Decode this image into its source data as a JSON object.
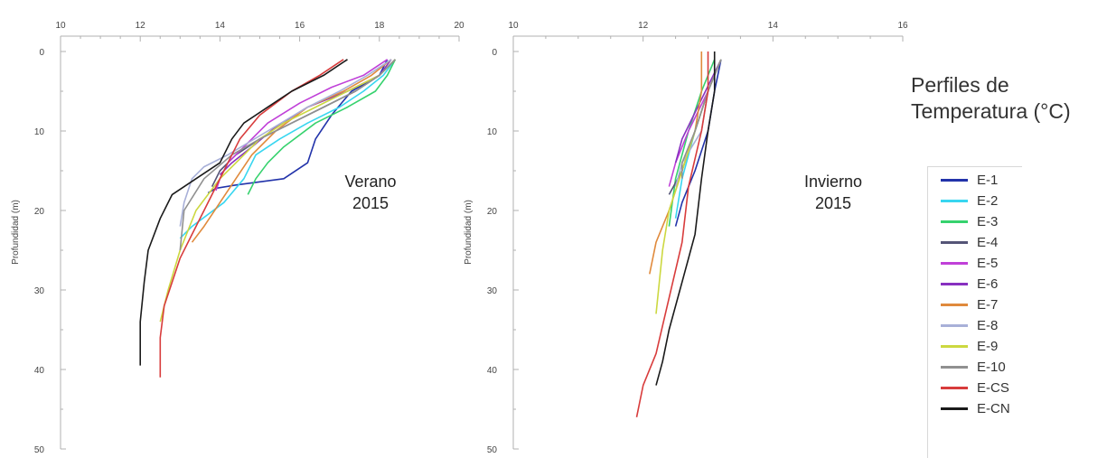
{
  "chart_data": [
    {
      "type": "line",
      "title": "Verano\n2015",
      "xlabel": "",
      "ylabel": "Profundidad (m)",
      "xlim": [
        10,
        20
      ],
      "ylim": [
        0,
        50
      ],
      "y_inverted": true,
      "x_ticks": [
        10,
        12,
        14,
        16,
        18,
        20
      ],
      "y_ticks": [
        0,
        10,
        20,
        30,
        40,
        50
      ],
      "x_axis_position": "top",
      "grid": false,
      "legend": "right",
      "series": [
        {
          "name": "E-1",
          "color": "#2233aa",
          "x": [
            18.2,
            18.0,
            17.3,
            16.8,
            16.4,
            16.2,
            15.6,
            14.4,
            13.9,
            13.7
          ],
          "y": [
            1,
            3,
            5,
            8,
            11,
            14,
            16,
            16.8,
            17.2,
            17.8
          ]
        },
        {
          "name": "E-2",
          "color": "#38d6f0",
          "x": [
            18.4,
            18.1,
            17.6,
            17.0,
            16.2,
            15.5,
            14.9,
            14.6,
            14.1,
            13.3,
            13.0
          ],
          "y": [
            1,
            3,
            5,
            7,
            9,
            11,
            13,
            16,
            19,
            22,
            23.5
          ]
        },
        {
          "name": "E-3",
          "color": "#36d26e",
          "x": [
            18.4,
            18.2,
            17.9,
            17.2,
            16.4,
            15.6,
            15.2,
            14.9,
            14.7
          ],
          "y": [
            1,
            3,
            5,
            7,
            9,
            12,
            14,
            16,
            18
          ]
        },
        {
          "name": "E-4",
          "color": "#555577",
          "x": [
            18.4,
            18.0,
            17.4,
            16.6,
            15.8,
            15.0,
            14.4,
            14.0,
            13.8
          ],
          "y": [
            1,
            3,
            5,
            7,
            9,
            11,
            13,
            15,
            17
          ]
        },
        {
          "name": "E-5",
          "color": "#c040d8",
          "x": [
            18.2,
            17.6,
            16.8,
            16.0,
            15.2,
            14.6,
            14.2,
            14.0,
            13.9
          ],
          "y": [
            1,
            3,
            4.5,
            6.5,
            9,
            12,
            14,
            16,
            17.5
          ]
        },
        {
          "name": "E-6",
          "color": "#8830c0",
          "x": [
            18.3,
            18.0,
            17.2,
            16.2,
            15.4,
            14.8,
            14.3,
            14.0
          ],
          "y": [
            1,
            3,
            5,
            7,
            9.5,
            12,
            14,
            15.5
          ]
        },
        {
          "name": "E-7",
          "color": "#e08a3c",
          "x": [
            18.3,
            17.8,
            17.1,
            16.2,
            15.4,
            14.8,
            14.4,
            14.0,
            13.6,
            13.3
          ],
          "y": [
            1,
            3,
            5,
            7,
            10,
            13,
            16,
            19,
            22,
            24
          ]
        },
        {
          "name": "E-8",
          "color": "#a8b0d8",
          "x": [
            18.3,
            17.7,
            17.0,
            16.2,
            15.2,
            14.2,
            13.6,
            13.3,
            13.1,
            13.0
          ],
          "y": [
            1,
            3,
            5,
            7,
            10,
            13,
            14.5,
            16,
            19,
            22
          ]
        },
        {
          "name": "E-9",
          "color": "#ccd840",
          "x": [
            18.4,
            18.0,
            17.2,
            16.4,
            15.6,
            15.0,
            14.6,
            14.0,
            13.4,
            13.0,
            12.7,
            12.5
          ],
          "y": [
            1,
            3,
            5,
            7,
            9,
            11,
            13,
            16,
            20,
            25,
            30,
            34
          ]
        },
        {
          "name": "E-10",
          "color": "#909090",
          "x": [
            18.4,
            18.0,
            17.4,
            16.6,
            15.8,
            15.0,
            14.3,
            13.6,
            13.1,
            13.0
          ],
          "y": [
            1,
            3,
            5,
            7,
            9,
            11,
            13,
            16,
            20,
            25
          ]
        },
        {
          "name": "E-CS",
          "color": "#d83c3c",
          "x": [
            17.1,
            16.5,
            15.8,
            15.0,
            14.5,
            14.2,
            13.9,
            13.6,
            13.3,
            13.0,
            12.8,
            12.6,
            12.5,
            12.5
          ],
          "y": [
            1,
            3,
            5,
            8,
            11,
            14,
            17,
            20,
            23,
            26,
            29,
            32,
            36,
            41
          ]
        },
        {
          "name": "E-CN",
          "color": "#1a1a1a",
          "x": [
            17.2,
            16.6,
            15.8,
            15.2,
            14.6,
            14.3,
            14.0,
            13.4,
            12.8,
            12.5,
            12.2,
            12.1,
            12.0,
            12.0
          ],
          "y": [
            1,
            3,
            5,
            7,
            9,
            11,
            14,
            16,
            18,
            21,
            25,
            29,
            34,
            39.5
          ]
        }
      ]
    },
    {
      "type": "line",
      "title": "Invierno\n2015",
      "xlabel": "",
      "ylabel": "Profundidad (m)",
      "xlim": [
        10,
        16
      ],
      "ylim": [
        0,
        50
      ],
      "y_inverted": true,
      "x_ticks": [
        10,
        12,
        14,
        16
      ],
      "y_ticks": [
        0,
        10,
        20,
        30,
        40,
        50
      ],
      "x_axis_position": "top",
      "grid": false,
      "legend": "right",
      "series": [
        {
          "name": "E-1",
          "color": "#2233aa",
          "x": [
            13.2,
            13.1,
            13.0,
            12.8,
            12.6,
            12.5
          ],
          "y": [
            1,
            5,
            10,
            15,
            19,
            22
          ]
        },
        {
          "name": "E-2",
          "color": "#38d6f0",
          "x": [
            13.2,
            13.0,
            12.8,
            12.6,
            12.5
          ],
          "y": [
            1,
            5,
            10,
            16,
            21
          ]
        },
        {
          "name": "E-3",
          "color": "#36d26e",
          "x": [
            13.1,
            12.9,
            12.7,
            12.5,
            12.4
          ],
          "y": [
            1,
            5,
            10,
            16,
            22
          ]
        },
        {
          "name": "E-4",
          "color": "#555577",
          "x": [
            13.2,
            13.0,
            12.8,
            12.6,
            12.4
          ],
          "y": [
            1,
            5,
            10,
            15,
            18
          ]
        },
        {
          "name": "E-5",
          "color": "#c040d8",
          "x": [
            13.2,
            13.0,
            12.7,
            12.5,
            12.4
          ],
          "y": [
            1,
            5,
            10,
            14,
            17
          ]
        },
        {
          "name": "E-6",
          "color": "#8830c0",
          "x": [
            13.2,
            12.9,
            12.6,
            12.5
          ],
          "y": [
            1,
            6,
            11,
            14
          ]
        },
        {
          "name": "E-7",
          "color": "#e08a3c",
          "x": [
            12.9,
            12.9,
            12.8,
            12.6,
            12.4,
            12.2,
            12.1
          ],
          "y": [
            0,
            5,
            10,
            15,
            20,
            24,
            28
          ]
        },
        {
          "name": "E-8",
          "color": "#a8b0d8",
          "x": [
            13.2,
            13.0,
            12.9,
            12.6,
            12.5
          ],
          "y": [
            1,
            5,
            10,
            14,
            17
          ]
        },
        {
          "name": "E-9",
          "color": "#ccd840",
          "x": [
            13.2,
            13.0,
            12.8,
            12.6,
            12.4,
            12.3,
            12.2
          ],
          "y": [
            1,
            5,
            10,
            15,
            20,
            25,
            33
          ]
        },
        {
          "name": "E-10",
          "color": "#909090",
          "x": [
            13.2,
            13.0,
            12.8,
            12.6,
            12.6
          ],
          "y": [
            1,
            5,
            10,
            14,
            16
          ]
        },
        {
          "name": "E-CS",
          "color": "#d83c3c",
          "x": [
            13.0,
            13.0,
            12.9,
            12.7,
            12.6,
            12.4,
            12.2,
            12.0,
            11.9
          ],
          "y": [
            0,
            5,
            10,
            17,
            24,
            31,
            38,
            42,
            46
          ]
        },
        {
          "name": "E-CN",
          "color": "#1a1a1a",
          "x": [
            13.1,
            13.1,
            13.0,
            12.9,
            12.8,
            12.6,
            12.4,
            12.3,
            12.2
          ],
          "y": [
            0,
            5,
            10,
            16,
            23,
            29,
            35,
            39,
            42
          ]
        }
      ]
    }
  ],
  "legend": {
    "title_line1": "Perfiles de",
    "title_line2": "Temperatura (°C)",
    "items": [
      {
        "label": "E-1",
        "color": "#2233aa"
      },
      {
        "label": "E-2",
        "color": "#38d6f0"
      },
      {
        "label": "E-3",
        "color": "#36d26e"
      },
      {
        "label": "E-4",
        "color": "#555577"
      },
      {
        "label": "E-5",
        "color": "#c040d8"
      },
      {
        "label": "E-6",
        "color": "#8830c0"
      },
      {
        "label": "E-7",
        "color": "#e08a3c"
      },
      {
        "label": "E-8",
        "color": "#a8b0d8"
      },
      {
        "label": "E-9",
        "color": "#ccd840"
      },
      {
        "label": "E-10",
        "color": "#909090"
      },
      {
        "label": "E-CS",
        "color": "#d83c3c"
      },
      {
        "label": "E-CN",
        "color": "#1a1a1a"
      }
    ]
  }
}
